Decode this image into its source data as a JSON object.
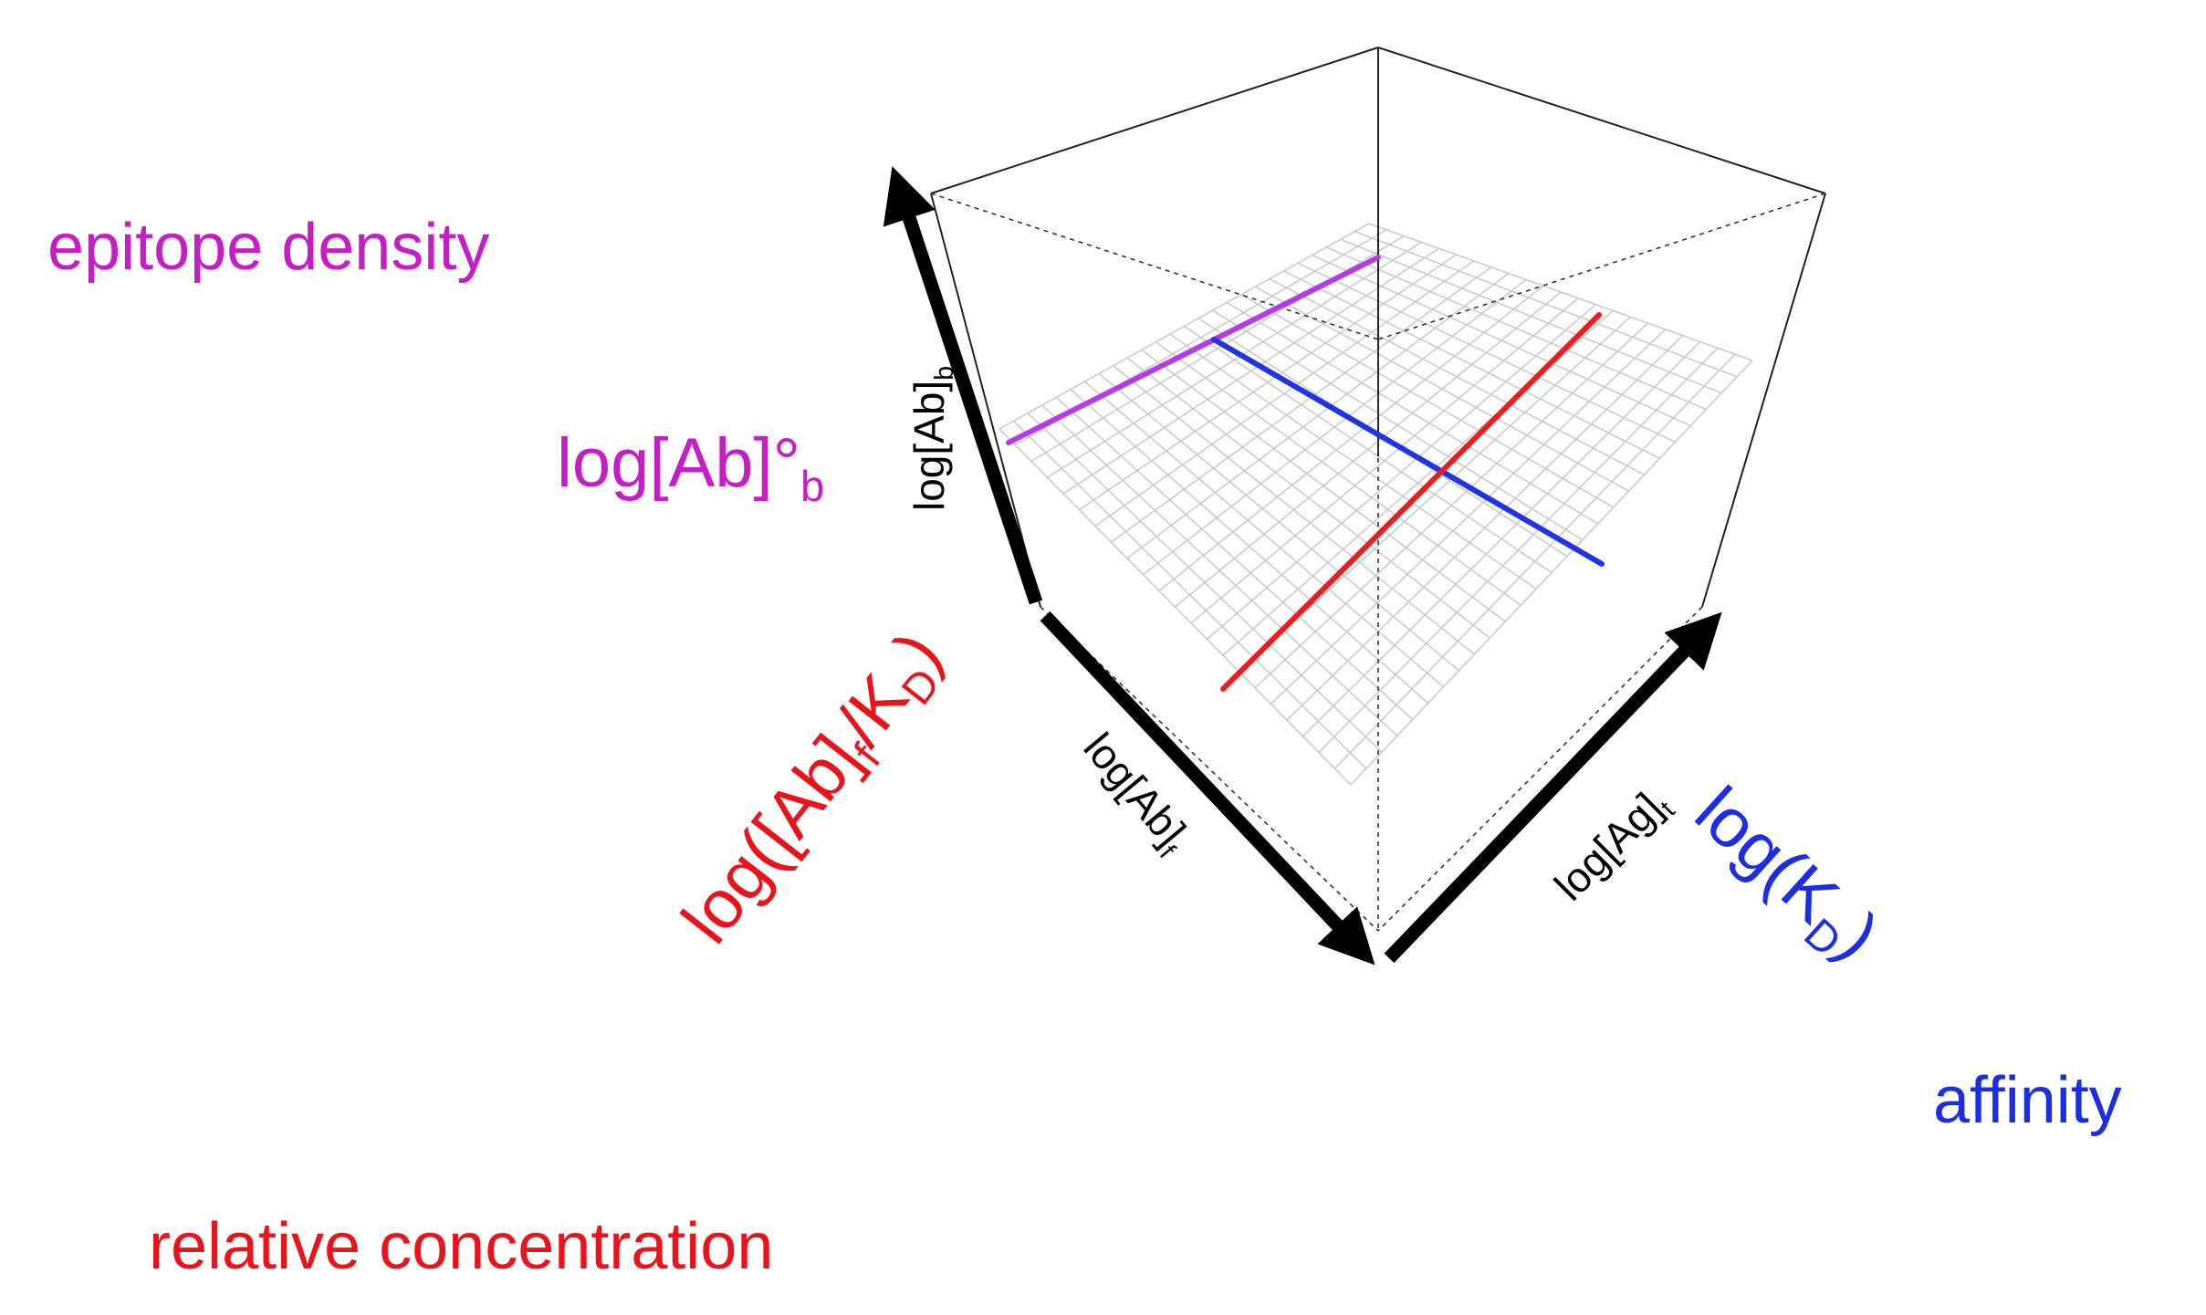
{
  "labels": {
    "epitope_density": "epitope density",
    "log_ab_b0": "log[Ab]°",
    "log_ab_b0_sub": "b",
    "relative_concentration": "relative concentration",
    "affinity": "affinity",
    "red_axis_prefix": "log([Ab]",
    "red_axis_sub_f": "f",
    "red_axis_mid": "/K",
    "red_axis_sub_d": "D",
    "red_axis_suffix": ")",
    "blue_axis_prefix": "log(K",
    "blue_axis_sub_d": "D",
    "blue_axis_suffix": ")"
  },
  "axes": {
    "z_label": "log[Ab]",
    "z_sub": "b",
    "x_label": "log[Ab]",
    "x_sub": "f",
    "y_label": "log[Ag]",
    "y_sub": "t"
  },
  "colors": {
    "purple_line": "#b43ce8",
    "blue_line": "#1f34e6",
    "red_line": "#ec1c1c",
    "mesh": "#c8c8c8",
    "box": "#222222"
  }
}
